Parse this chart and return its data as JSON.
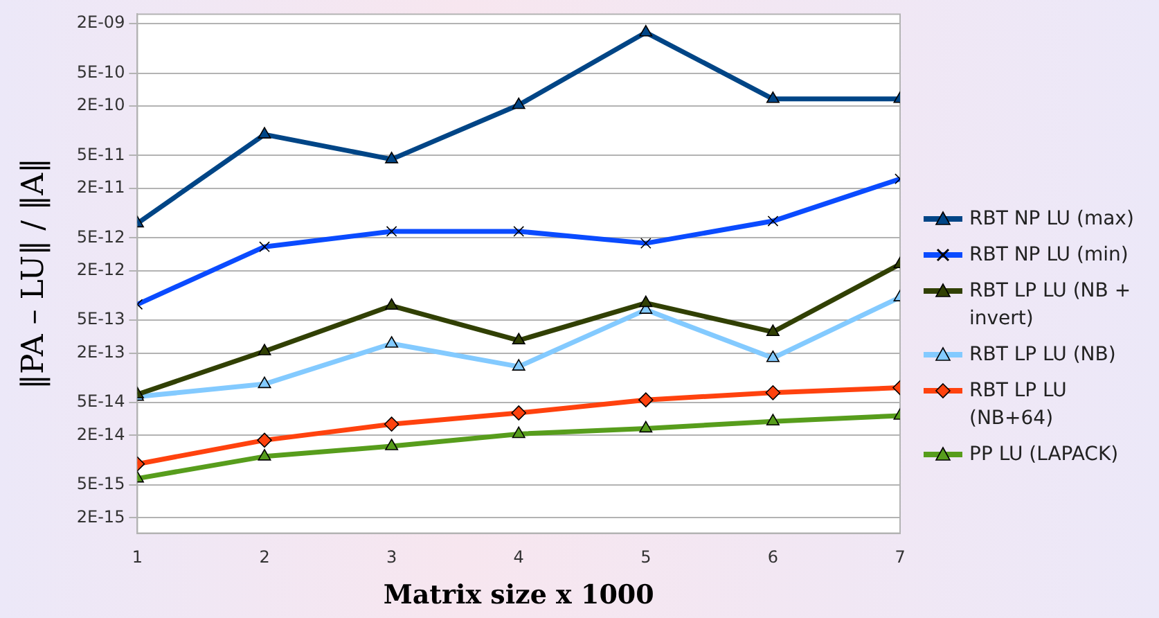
{
  "chart_data": {
    "type": "line",
    "xlabel": "Matrix size x 1000",
    "ylabel": "‖PA – LU‖ / ‖A‖",
    "x": [
      1,
      2,
      3,
      4,
      5,
      6,
      7
    ],
    "log": "y",
    "grid": "y",
    "legend": "right",
    "line_style": "solid",
    "xlim": [
      1,
      7
    ],
    "xticks": [
      1,
      2,
      3,
      4,
      5,
      6,
      7
    ],
    "ylim": [
      1.3e-15,
      2.6e-09
    ],
    "yticks": [
      {
        "value": 2e-09,
        "label": "2E-09"
      },
      {
        "value": 5e-10,
        "label": "5E-10"
      },
      {
        "value": 2e-10,
        "label": "2E-10"
      },
      {
        "value": 5e-11,
        "label": "5E-11"
      },
      {
        "value": 2e-11,
        "label": "2E-11"
      },
      {
        "value": 5e-12,
        "label": "5E-12"
      },
      {
        "value": 2e-12,
        "label": "2E-12"
      },
      {
        "value": 5e-13,
        "label": "5E-13"
      },
      {
        "value": 2e-13,
        "label": "2E-13"
      },
      {
        "value": 5e-14,
        "label": "5E-14"
      },
      {
        "value": 2e-14,
        "label": "2E-14"
      },
      {
        "value": 5e-15,
        "label": "5E-15"
      },
      {
        "value": 2e-15,
        "label": "2E-15"
      }
    ],
    "series": [
      {
        "name": "RBT NP LU (max)",
        "color": "#004586",
        "marker": "triangle",
        "values": [
          7.5e-12,
          9e-11,
          4.5e-11,
          2.05e-10,
          1.56e-09,
          2.43e-10,
          2.43e-10
        ]
      },
      {
        "name": "RBT NP LU (min)",
        "color": "#0a4bff",
        "marker": "cross",
        "values": [
          7.8e-13,
          3.9e-12,
          6e-12,
          6e-12,
          4.3e-12,
          8e-12,
          2.6e-11
        ]
      },
      {
        "name": "RBT LP LU (NB + invert)",
        "color": "#314004",
        "marker": "triangle",
        "values": [
          6.3e-14,
          2.1e-13,
          7.5e-13,
          2.85e-13,
          8.1e-13,
          3.6e-13,
          2.4e-12
        ]
      },
      {
        "name": "RBT LP LU (NB)",
        "color": "#83caff",
        "marker": "triangle",
        "values": [
          5.9e-14,
          8.4e-14,
          2.6e-13,
          1.37e-13,
          6.7e-13,
          1.74e-13,
          9.5e-13
        ]
      },
      {
        "name": "RBT LP LU (NB+64)",
        "color": "#ff420e",
        "marker": "diamond",
        "values": [
          9e-15,
          1.75e-14,
          2.74e-14,
          3.75e-14,
          5.4e-14,
          6.6e-14,
          7.6e-14
        ]
      },
      {
        "name": "PP LU (LAPACK)",
        "color": "#579d1c",
        "marker": "triangle",
        "values": [
          6e-15,
          1.11e-14,
          1.48e-14,
          2.08e-14,
          2.43e-14,
          2.96e-14,
          3.47e-14
        ]
      }
    ]
  }
}
